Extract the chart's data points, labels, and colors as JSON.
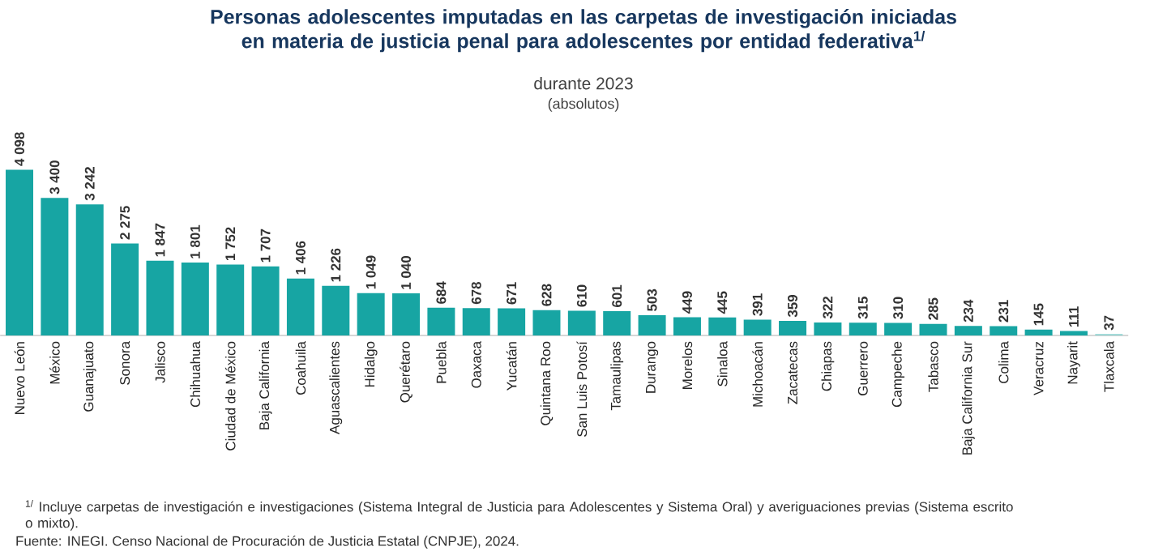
{
  "chart_data": {
    "type": "bar",
    "title": "Personas adolescentes imputadas en las carpetas de investigación iniciadas en materia de justicia penal para adolescentes por entidad federativa$^{1/}$",
    "subtitle": "durante 2023",
    "categories": [
      "Nuevo León",
      "México",
      "Guanajuato",
      "Sonora",
      "Jalisco",
      "Chihuahua",
      "Ciudad de México",
      "Baja California",
      "Coahuila",
      "Aguascalientes",
      "Hidalgo",
      "Querétaro",
      "Puebla",
      "Oaxaca",
      "Yucatán",
      "Quintana Roo",
      "San Luis Potosí",
      "Tamaulipas",
      "Durango",
      "Morelos",
      "Sinaloa",
      "Michoacán",
      "Zacatecas",
      "Chiapas",
      "Guerrero",
      "Campeche",
      "Tabasco",
      "Baja California Sur",
      "Colima",
      "Veracruz",
      "Nayarit",
      "Tlaxcala"
    ],
    "values": [
      4098,
      3400,
      3242,
      2275,
      1847,
      1801,
      1752,
      1707,
      1406,
      1226,
      1049,
      1040,
      684,
      678,
      671,
      628,
      610,
      601,
      503,
      449,
      445,
      391,
      359,
      322,
      315,
      310,
      285,
      234,
      231,
      145,
      111,
      37
    ],
    "value_labels": [
      "4 098",
      "3 400",
      "3 242",
      "2 275",
      "1 847",
      "1 801",
      "1 752",
      "1 707",
      "1 406",
      "1 226",
      "1 049",
      "1 040",
      "684",
      "678",
      "671",
      "628",
      "610",
      "601",
      "503",
      "449",
      "445",
      "391",
      "359",
      "322",
      "315",
      "310",
      "285",
      "234",
      "231",
      "145",
      "111",
      "37"
    ],
    "colors": [
      "#17a5a3",
      "#17a5a3",
      "#17a5a3",
      "#17a5a3",
      "#17a5a3",
      "#17a5a3",
      "#17a5a3",
      "#17a5a3",
      "#17a5a3",
      "#17a5a3",
      "#17a5a3",
      "#17a5a3",
      "#17a5a3",
      "#17a5a3",
      "#17a5a3",
      "#17a5a3",
      "#17a5a3",
      "#17a5a3",
      "#17a5a3",
      "#17a5a3",
      "#17a5a3",
      "#17a5a3",
      "#17a5a3",
      "#17a5a3",
      "#17a5a3",
      "#17a5a3",
      "#17a5a3",
      "#17a5a3",
      "#17a5a3",
      "#17a5a3",
      "#17a5a3",
      "#8fd3d1"
    ],
    "annotations": [
      "(absolutos)",
      "$^{1/}$ Incluye carpetas de investigación e investigaciones (Sistema Integral de Justicia para Adolescentes y Sistema Oral) y averiguaciones previas (Sistema escrito o mixto).",
      "Fuente: INEGI. Censo Nacional de Procuración de Justicia Estatal (CNPJE), 2024."
    ],
    "data_labels": false
  }
}
